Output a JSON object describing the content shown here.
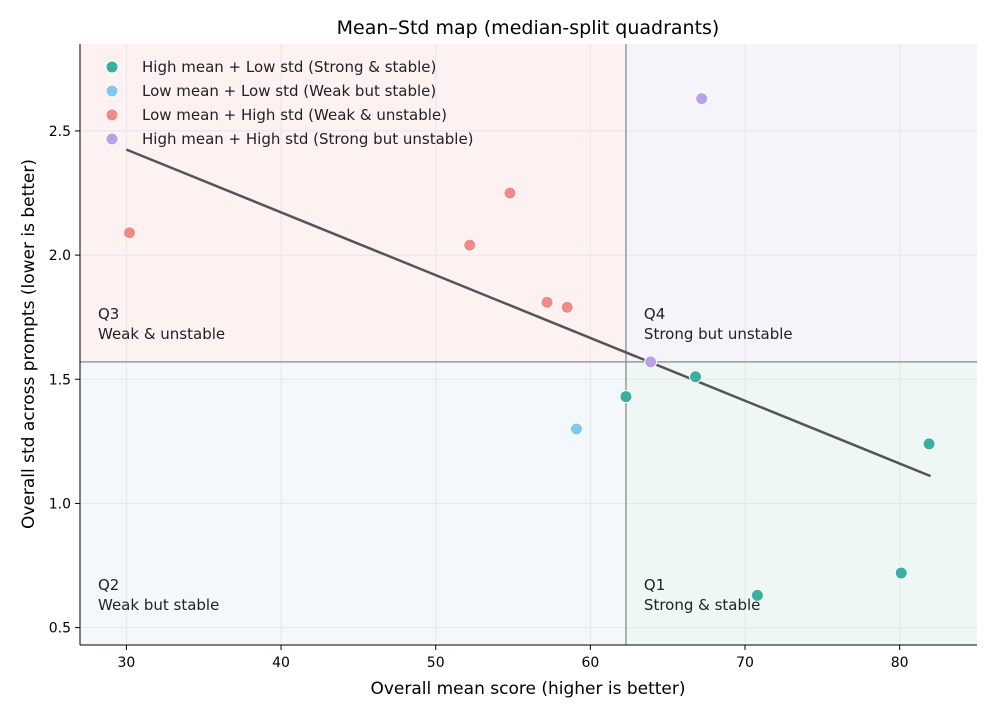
{
  "chart_data": {
    "type": "scatter",
    "title": "Mean–Std map (median-split quadrants)",
    "xlabel": "Overall mean score (higher is better)",
    "ylabel": "Overall std across prompts (lower is better)",
    "xlim": [
      27,
      85
    ],
    "ylim": [
      0.43,
      2.85
    ],
    "xticks": [
      30,
      40,
      50,
      60,
      70,
      80
    ],
    "yticks": [
      0.5,
      1.0,
      1.5,
      2.0,
      2.5
    ],
    "xtick_labels": [
      "30",
      "40",
      "50",
      "60",
      "70",
      "80"
    ],
    "ytick_labels": [
      "0.5",
      "1.0",
      "1.5",
      "2.0",
      "2.5"
    ],
    "median_x": 62.3,
    "median_y": 1.57,
    "trend_line": {
      "x": [
        30.0,
        82.0
      ],
      "y": [
        2.425,
        1.11
      ]
    },
    "quadrant_labels": [
      {
        "id": "Q1",
        "line1": "Q1",
        "line2": "Strong & stable"
      },
      {
        "id": "Q2",
        "line1": "Q2",
        "line2": "Weak but stable"
      },
      {
        "id": "Q3",
        "line1": "Q3",
        "line2": "Weak & unstable"
      },
      {
        "id": "Q4",
        "line1": "Q4",
        "line2": "Strong but unstable"
      }
    ],
    "legend_position": "top-left",
    "series": [
      {
        "name": "High mean + Low std (Strong & stable)",
        "color": "#3aafa0",
        "points": [
          {
            "x": 62.3,
            "y": 1.43
          },
          {
            "x": 66.8,
            "y": 1.51
          },
          {
            "x": 70.8,
            "y": 0.63
          },
          {
            "x": 80.1,
            "y": 0.72
          },
          {
            "x": 81.9,
            "y": 1.24
          }
        ]
      },
      {
        "name": "Low mean + Low std (Weak but stable)",
        "color": "#7ec8f2",
        "points": [
          {
            "x": 59.1,
            "y": 1.3
          }
        ]
      },
      {
        "name": "Low mean + High std (Weak & unstable)",
        "color": "#f08a88",
        "points": [
          {
            "x": 30.2,
            "y": 2.09
          },
          {
            "x": 52.2,
            "y": 2.04
          },
          {
            "x": 54.8,
            "y": 2.25
          },
          {
            "x": 57.2,
            "y": 1.81
          },
          {
            "x": 58.5,
            "y": 1.79
          }
        ]
      },
      {
        "name": "High mean + High std (Strong but unstable)",
        "color": "#b9a0e8",
        "points": [
          {
            "x": 63.9,
            "y": 1.57
          },
          {
            "x": 67.2,
            "y": 2.63
          }
        ]
      }
    ],
    "colors": {
      "q1_bg": "#eef7f4",
      "q2_bg": "#f3f8fc",
      "q3_bg": "#fdf2f1",
      "q4_bg": "#f5f4fb",
      "median_line": "#999999",
      "trend_line": "#555555",
      "grid": "#e6e6e6"
    }
  }
}
